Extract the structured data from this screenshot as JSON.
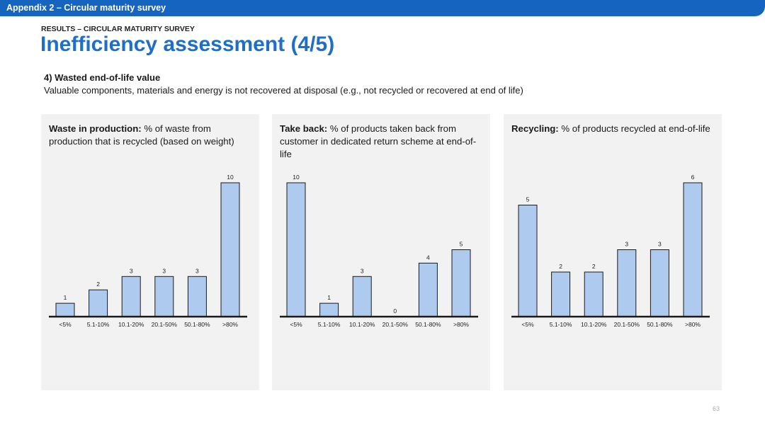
{
  "header": {
    "breadcrumb": "Appendix 2 – Circular maturity survey",
    "kicker": "RESULTS – CIRCULAR MATURITY SURVEY",
    "title": "Inefficiency assessment (4/5)"
  },
  "section": {
    "heading": "4) Wasted end-of-life value",
    "description": "Valuable components, materials and energy is not recovered at disposal (e.g., not recycled or recovered at end of life)"
  },
  "colors": {
    "brand_blue": "#1565c0",
    "title_blue": "#1e6fc8",
    "bar_fill": "#aecbef",
    "panel_bg": "#f2f2f2"
  },
  "panels": [
    {
      "title_bold": "Waste in production:",
      "title_rest": " % of waste from production that is recycled (based on weight)"
    },
    {
      "title_bold": "Take back:",
      "title_rest": " % of products taken back from customer in dedicated return scheme at end-of-life"
    },
    {
      "title_bold": "Recycling:",
      "title_rest": " % of products recycled at end-of-life"
    }
  ],
  "chart_data": [
    {
      "type": "bar",
      "title": "Waste in production: % of waste from production that is recycled (based on weight)",
      "categories": [
        "<5%",
        "5.1-10%",
        "10.1-20%",
        "20.1-50%",
        "50.1-80%",
        ">80%"
      ],
      "values": [
        1,
        2,
        3,
        3,
        3,
        10
      ],
      "ylim": [
        0,
        10
      ]
    },
    {
      "type": "bar",
      "title": "Take back: % of products taken back from customer in dedicated return scheme at end-of-life",
      "categories": [
        "<5%",
        "5.1-10%",
        "10.1-20%",
        "20.1-50%",
        "50.1-80%",
        ">80%"
      ],
      "values": [
        10,
        1,
        3,
        0,
        4,
        5
      ],
      "ylim": [
        0,
        10
      ]
    },
    {
      "type": "bar",
      "title": "Recycling: % of products recycled at end-of-life",
      "categories": [
        "<5%",
        "5.1-10%",
        "10.1-20%",
        "20.1-50%",
        "50.1-80%",
        ">80%"
      ],
      "values": [
        5,
        2,
        2,
        3,
        3,
        6
      ],
      "ylim": [
        0,
        6
      ]
    }
  ],
  "footer": {
    "page_number": "63"
  }
}
